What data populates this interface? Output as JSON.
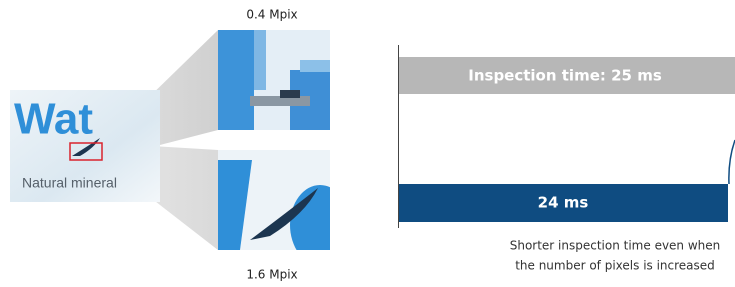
{
  "zoom": {
    "top_label": "0.4 Mpix",
    "bottom_label": "1.6 Mpix"
  },
  "product": {
    "brand": "Wat",
    "tagline": "Natural mineral"
  },
  "bars": [
    {
      "label": "Inspection time: 25 ms"
    },
    {
      "label": "24 ms"
    }
  ],
  "caption": [
    "Shorter inspection time even when",
    "the number of pixels is increased"
  ]
}
